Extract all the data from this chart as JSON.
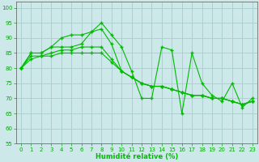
{
  "title": "",
  "xlabel": "Humidité relative (%)",
  "ylabel": "",
  "bg_color": "#cce8e8",
  "grid_color": "#aacccc",
  "line_color": "#00bb00",
  "marker": "+",
  "xlim": [
    -0.5,
    23.5
  ],
  "ylim": [
    55,
    102
  ],
  "yticks": [
    55,
    60,
    65,
    70,
    75,
    80,
    85,
    90,
    95,
    100
  ],
  "xticks": [
    0,
    1,
    2,
    3,
    4,
    5,
    6,
    7,
    8,
    9,
    10,
    11,
    12,
    13,
    14,
    15,
    16,
    17,
    18,
    19,
    20,
    21,
    22,
    23
  ],
  "series": [
    [
      80,
      85,
      85,
      87,
      87,
      87,
      88,
      92,
      95,
      91,
      87,
      79,
      70,
      70,
      87,
      86,
      65,
      85,
      75,
      71,
      69,
      75,
      67,
      70
    ],
    [
      80,
      85,
      85,
      87,
      90,
      91,
      91,
      92,
      93,
      88,
      79,
      77,
      75,
      74,
      74,
      73,
      72,
      71,
      71,
      70,
      70,
      69,
      68,
      69
    ],
    [
      80,
      84,
      84,
      85,
      86,
      86,
      87,
      87,
      87,
      83,
      79,
      77,
      75,
      74,
      74,
      73,
      72,
      71,
      71,
      70,
      70,
      69,
      68,
      69
    ],
    [
      80,
      83,
      84,
      84,
      85,
      85,
      85,
      85,
      85,
      82,
      79,
      77,
      75,
      74,
      74,
      73,
      72,
      71,
      71,
      70,
      70,
      69,
      68,
      69
    ]
  ]
}
